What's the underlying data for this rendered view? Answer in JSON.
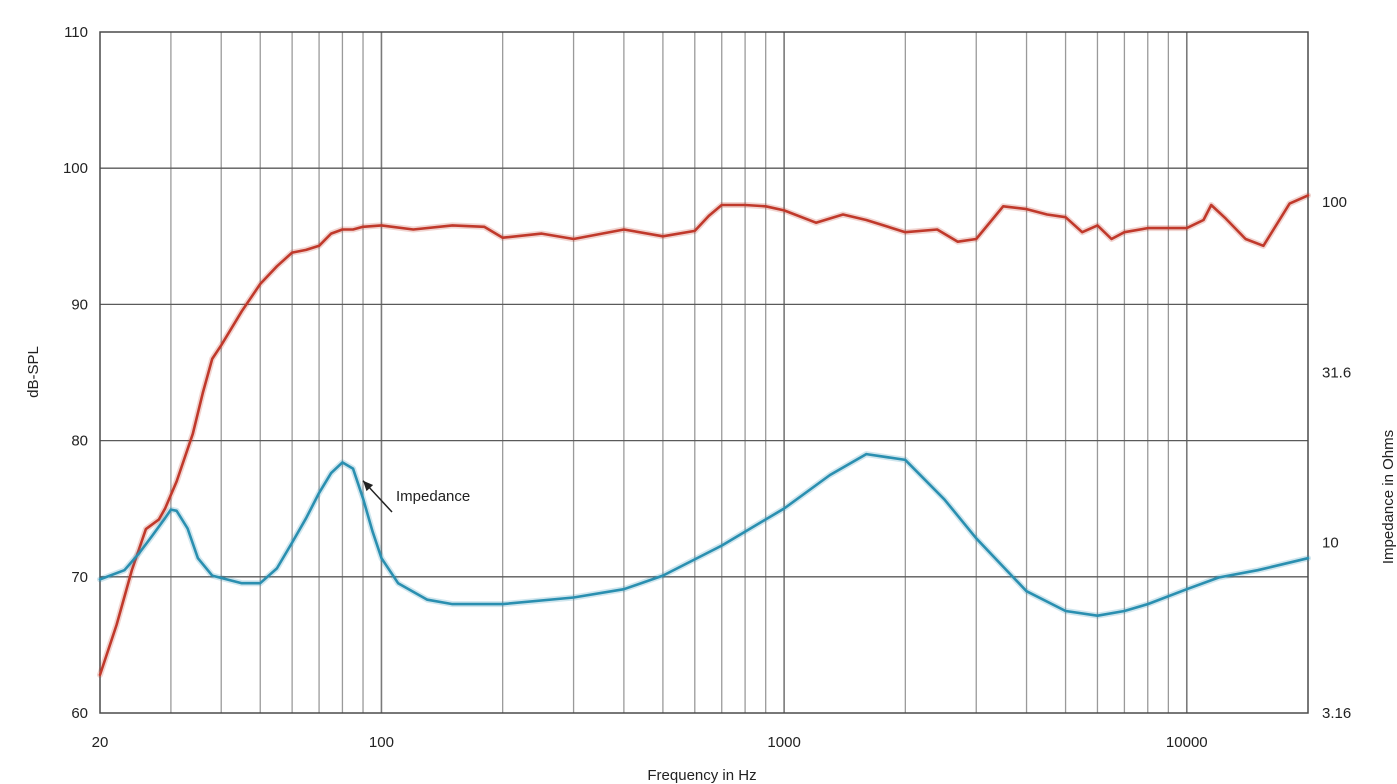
{
  "chart_data": {
    "type": "line",
    "title": "",
    "xlabel": "Frequency in Hz",
    "ylabel": "dB-SPL",
    "y2label": "Impedance in Ohms",
    "x_scale": "log",
    "xlim": [
      20,
      20000
    ],
    "ylim": [
      60,
      110
    ],
    "y2_scale": "log",
    "y2lim": [
      3.16,
      316
    ],
    "grid": true,
    "x_ticks": [
      {
        "value": 20,
        "label": "20"
      },
      {
        "value": 100,
        "label": "100"
      },
      {
        "value": 1000,
        "label": "1000"
      },
      {
        "value": 10000,
        "label": "10000"
      }
    ],
    "y_ticks": [
      {
        "value": 60,
        "label": "60"
      },
      {
        "value": 70,
        "label": "70"
      },
      {
        "value": 80,
        "label": "80"
      },
      {
        "value": 90,
        "label": "90"
      },
      {
        "value": 100,
        "label": "100"
      },
      {
        "value": 110,
        "label": "110"
      }
    ],
    "y2_ticks": [
      {
        "value": 3.16,
        "label": "3.16"
      },
      {
        "value": 10,
        "label": "10"
      },
      {
        "value": 31.6,
        "label": "31.6"
      },
      {
        "value": 100,
        "label": "100"
      }
    ],
    "series": [
      {
        "axis": "left",
        "color": "#c0392b",
        "x": [
          20,
          22,
          24,
          26,
          28,
          29,
          31,
          34,
          36,
          38,
          40,
          45,
          50,
          55,
          60,
          65,
          70,
          75,
          80,
          85,
          90,
          100,
          120,
          150,
          180,
          200,
          250,
          300,
          400,
          500,
          600,
          650,
          700,
          800,
          900,
          1000,
          1200,
          1400,
          1600,
          2000,
          2400,
          2700,
          3000,
          3500,
          4000,
          4500,
          5000,
          5500,
          6000,
          6500,
          7000,
          8000,
          9000,
          10000,
          11000,
          11500,
          12500,
          14000,
          15500,
          18000,
          20000
        ],
        "y": [
          62.8,
          66.5,
          70.5,
          73.5,
          74.2,
          75.0,
          77.0,
          80.5,
          83.5,
          86.0,
          87.0,
          89.5,
          91.5,
          92.8,
          93.8,
          94.0,
          94.3,
          95.2,
          95.5,
          95.5,
          95.7,
          95.8,
          95.5,
          95.8,
          95.7,
          94.9,
          95.2,
          94.8,
          95.5,
          95.0,
          95.4,
          96.5,
          97.3,
          97.3,
          97.2,
          96.9,
          96.0,
          96.6,
          96.2,
          95.3,
          95.5,
          94.6,
          94.8,
          97.2,
          97.0,
          96.6,
          96.4,
          95.3,
          95.8,
          94.8,
          95.3,
          95.6,
          95.6,
          95.6,
          96.2,
          97.3,
          96.3,
          94.8,
          94.3,
          97.4,
          98.0
        ]
      },
      {
        "axis": "right",
        "name": "Impedance",
        "color": "#2a8fb0",
        "x": [
          20,
          23,
          25,
          27,
          29,
          30,
          31,
          33,
          35,
          38,
          45,
          50,
          55,
          60,
          65,
          70,
          75,
          80,
          85,
          90,
          95,
          100,
          110,
          130,
          150,
          200,
          300,
          400,
          500,
          700,
          1000,
          1300,
          1600,
          2000,
          2500,
          3000,
          4000,
          5000,
          6000,
          7000,
          8000,
          10000,
          12000,
          15000,
          20000
        ],
        "y": [
          7.8,
          8.3,
          9.3,
          10.5,
          11.8,
          12.5,
          12.4,
          11.0,
          9.0,
          8.0,
          7.6,
          7.6,
          8.4,
          10.0,
          11.8,
          14.0,
          16.0,
          17.2,
          16.5,
          13.5,
          10.8,
          9.0,
          7.6,
          6.8,
          6.6,
          6.6,
          6.9,
          7.3,
          8.0,
          9.8,
          12.6,
          15.8,
          18.2,
          17.5,
          13.4,
          10.3,
          7.2,
          6.3,
          6.1,
          6.3,
          6.6,
          7.3,
          7.9,
          8.3,
          9.0
        ]
      }
    ],
    "annotations": [
      {
        "text": "Impedance",
        "target_x": 90,
        "target_y": 15.2
      }
    ]
  }
}
